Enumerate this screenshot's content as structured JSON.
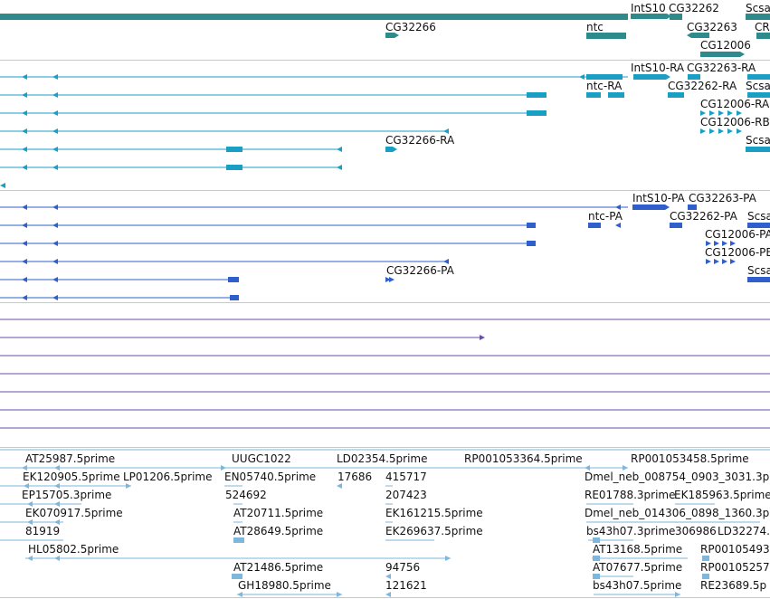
{
  "tracks": {
    "gene": {
      "labels": [
        "IntS10",
        "CG32262",
        "Scsal",
        "CG32266",
        "ntc",
        "CG32263",
        "CR",
        "CG12006"
      ],
      "color": "#2e8b8b"
    },
    "transcript": {
      "labels": [
        "IntS10-RA",
        "CG32263-RA",
        "ntc-RA",
        "CG32262-RA",
        "Scsal",
        "CG12006-RA",
        "CG12006-RB",
        "CG32266-RA",
        "Scsal"
      ],
      "color": "#1a9fc4"
    },
    "polypeptide": {
      "labels": [
        "IntS10-PA",
        "CG32263-PA",
        "ntc-PA",
        "CG32262-PA",
        "Scsa",
        "CG12006-PA",
        "CG12006-PB",
        "CG32266-PA",
        "Scsa"
      ],
      "color": "#2f5fcc"
    },
    "purple": {
      "color": "#6a4fa8"
    },
    "est": {
      "labels": [
        "AT25987.5prime",
        "UUGC1022",
        "LD02354.5prime",
        "RP001053364.5prime",
        "RP001053458.5prime",
        "EK120905.5prime",
        "LP01206.5prime",
        "EN05740.5prime",
        "17686",
        "415717",
        "Dmel_neb_008754_0903_3031.3p",
        "EP15705.3prime",
        "524692",
        "207423",
        "RE01788.3prime",
        "EK185963.5prime",
        "EK070917.5prime",
        "AT20711.5prime",
        "EK161215.5prime",
        "Dmel_neb_014306_0898_1360.3p",
        "81919",
        "AT28649.5prime",
        "EK269637.5prime",
        "bs43h07.3prime",
        "306986",
        "LD32274.",
        "HL05802.5prime",
        "AT13168.5prime",
        "RP00105493",
        "AT21486.5prime",
        "94756",
        "AT07677.5prime",
        "RP00105257",
        "GH18980.5prime",
        "121621",
        "bs43h07.5prime",
        "RE23689.5p"
      ],
      "color": "#7eb6dc"
    }
  }
}
